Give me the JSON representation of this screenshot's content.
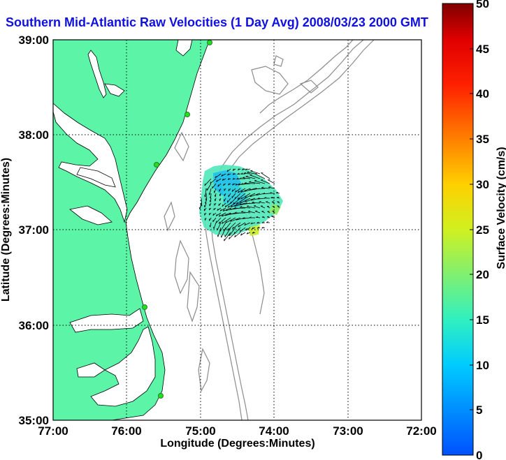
{
  "title": "Southern Mid-Atlantic Raw Velocities (1 Day Avg) 2008/03/23 2000 GMT",
  "map": {
    "xlabel": "Longitude (Degrees:Minutes)",
    "ylabel": "Latitude (Degrees:Minutes)",
    "xticks": [
      "77:00",
      "76:00",
      "75:00",
      "74:00",
      "73:00",
      "72:00"
    ],
    "yticks": [
      "39:00",
      "38:00",
      "37:00",
      "36:00",
      "35:00"
    ],
    "land_color": "#5cf5a8",
    "water_color": "#ffffff",
    "bathymetry_color": "#8c8c8c"
  },
  "colorbar": {
    "label": "Surface Velocity (cm/s)",
    "ticks": [
      "50",
      "45",
      "40",
      "35",
      "30",
      "25",
      "20",
      "15",
      "10",
      "5",
      "0"
    ],
    "min": 0,
    "max": 50
  }
}
